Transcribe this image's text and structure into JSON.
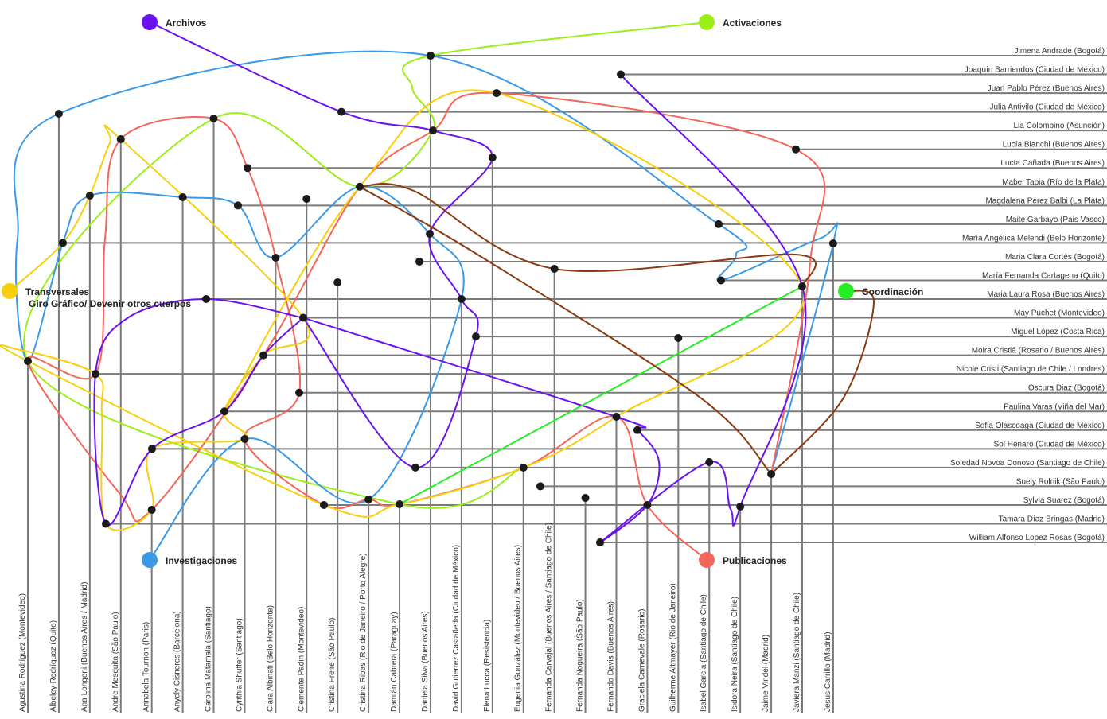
{
  "hubs": [
    {
      "name": "Archivos",
      "color": "#6a11ee"
    },
    {
      "name": "Activaciones",
      "color": "#9bef14"
    },
    {
      "name": "Transversales",
      "subtitle": "Giro Gráfico/  Devenir otros cuerpos",
      "color": "#f9cf0a"
    },
    {
      "name": "Investigaciones",
      "color": "#3a9ae8"
    },
    {
      "name": "Publicaciones",
      "color": "#f4665a"
    },
    {
      "name": "Coordinación",
      "color": "#22ee22"
    }
  ],
  "link_colors": {
    "coordinacion_secondary": "#8b3a0f"
  },
  "column_people": [
    "Agustina Rodríguez (Montevideo)",
    "Albeley Rodríguez (Quito)",
    "Ana Longoni (Buenos Aires / Madrid)",
    "Andre Mesquita (São Paulo)",
    "Annabela Tournon (Paris)",
    "Anyely Cisneros (Barcelona)",
    "Carolina Matamala (Santiago)",
    "Cynthia Shuffer (Santiago)",
    "Clara Albinati (Belo Horizonte)",
    "Clemente Padin (Montevideo)",
    "Cristina Freire (São Paulo)",
    "Cristina Ribas (Rio de Janeiro / Porto Alegre)",
    "Damián Cabrera (Paraguay)",
    "Daniela Silva (Buenos Aires)",
    "David Gutierrez Castañeda (Ciudad de México)",
    "Elena Lucca (Resistencia)",
    "Eugenia González (Montevideo / Buenos Aires)",
    "Fernanda Carvajal (Buenos Aires / Santiago de Chile)",
    "Fernanda Nogueira (São Paulo)",
    "Fernando Davis (Buenos Aires)",
    "Graciela Carnevale (Rosario)",
    "Guilherme Altmayer (Rio de Janeiro)",
    "Isabel García (Santiago de Chile)",
    "Isidora Neira (Santiago de Chile)",
    "Jaime Vindel (Madrid)",
    "Javiera Manzi (Santiago de Chile)",
    "Jesus Carrillo (Madrid)"
  ],
  "row_people": [
    "Jimena Andrade (Bogotá)",
    "Joaquín Barriendos (Ciudad de México)",
    "Juan Pablo Pérez (Buenos Aires)",
    "Julia Antivilo (Ciudad de México)",
    "Lia Colombino (Asunción)",
    "Lucía Bianchi (Buenos Aires)",
    "Lucía Cañada (Buenos Aires)",
    "Mabel Tapia (Río de la Plata)",
    "Magdalena Pérez Balbi (La Plata)",
    "Maite Garbayo (Pais Vasco)",
    "María Angélica Melendi (Belo Horizonte)",
    "Maria Clara Cortés (Bogotá)",
    "María Fernanda Cartagena (Quito)",
    "Maria Laura Rosa (Buenos Aires)",
    "May Puchet (Montevideo)",
    "Miguel López (Costa Rica)",
    "Moira Cristiá (Rosario / Buenos Aires)",
    "Nicole Cristi (Santiago de Chile / Londres)",
    "Oscura Diaz (Bogotá)",
    "Paulina Varas (Viña del Mar)",
    "Sofia Olascoaga (Ciudad de México)",
    "Sol Henaro (Ciudad de México)",
    "Soledad Novoa Donoso (Santiago de Chile)",
    "Suely Rolnik (São Paulo)",
    "Sylvia Suarez (Bogotá)",
    "Tamara Díaz Bringas (Madrid)",
    "William Alfonso Lopez Rosas (Bogotá)"
  ]
}
